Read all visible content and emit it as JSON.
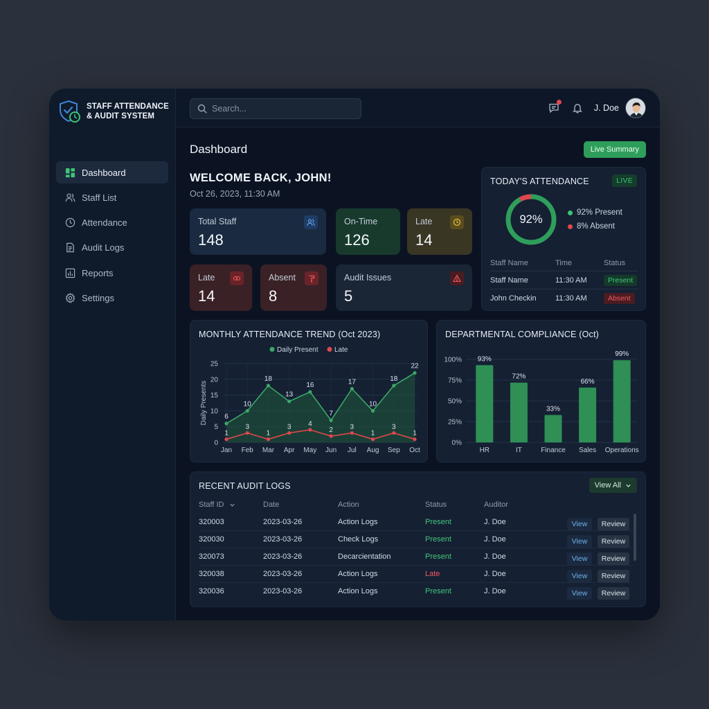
{
  "brand": {
    "title": "STAFF ATTENDANCE & AUDIT SYSTEM"
  },
  "sidebar": {
    "items": [
      {
        "label": "Dashboard",
        "icon": "dashboard-icon",
        "active": true
      },
      {
        "label": "Staff List",
        "icon": "users-icon"
      },
      {
        "label": "Attendance",
        "icon": "clock-icon"
      },
      {
        "label": "Audit Logs",
        "icon": "document-icon"
      },
      {
        "label": "Reports",
        "icon": "bar-chart-icon"
      },
      {
        "label": "Settings",
        "icon": "gear-icon"
      }
    ]
  },
  "topbar": {
    "search_placeholder": "Search...",
    "user_name": "J. Doe"
  },
  "header": {
    "title": "Dashboard",
    "live_summary_label": "Live Summary",
    "welcome": "WELCOME BACK, JOHN!",
    "datetime": "Oct 26, 2023, 11:30 AM"
  },
  "stats": {
    "total_staff": {
      "label": "Total Staff",
      "value": "148"
    },
    "on_time": {
      "label": "On-Time",
      "value": "126"
    },
    "late_top": {
      "label": "Late",
      "value": "14"
    },
    "late": {
      "label": "Late",
      "value": "14"
    },
    "absent": {
      "label": "Absent",
      "value": "8"
    },
    "audit_issues": {
      "label": "Audit Issues",
      "value": "5"
    }
  },
  "today": {
    "title": "TODAY'S ATTENDANCE",
    "live_label": "LIVE",
    "percent_label": "92%",
    "present_fraction": 0.92,
    "legend_present": "92% Present",
    "legend_absent": "8% Absent",
    "columns": [
      "Staff Name",
      "Time",
      "Status"
    ],
    "rows": [
      {
        "name": "Staff Name",
        "time": "11:30 AM",
        "status": "Present"
      },
      {
        "name": "John Checkin",
        "time": "11:30 AM",
        "status": "Absent"
      }
    ]
  },
  "monthly_title": "MONTHLY ATTENDANCE TREND (Oct 2023)",
  "compliance_title": "DEPARTMENTAL COMPLIANCE (Oct)",
  "chart_data": [
    {
      "type": "line",
      "title": "MONTHLY ATTENDANCE TREND (Oct 2023)",
      "ylabel": "Daily Presents",
      "categories": [
        "Jan",
        "Feb",
        "Mar",
        "Apr",
        "May",
        "Jun",
        "Jul",
        "Aug",
        "Sep",
        "Oct"
      ],
      "yticks": [
        "0",
        "5",
        "10",
        "15",
        "20",
        "25"
      ],
      "ylim": [
        0,
        25
      ],
      "series": [
        {
          "name": "Daily Present",
          "color": "#3aa866",
          "values": [
            6,
            10,
            18,
            13,
            16,
            7,
            17,
            10,
            18,
            22
          ]
        },
        {
          "name": "Late",
          "color": "#e0474c",
          "values": [
            1,
            3,
            1,
            3,
            4,
            2,
            3,
            1,
            3,
            1
          ]
        }
      ],
      "grid": true,
      "legend": "top-center"
    },
    {
      "type": "bar",
      "title": "DEPARTMENTAL COMPLIANCE (Oct)",
      "categories": [
        "HR",
        "IT",
        "Finance",
        "Sales",
        "Operations"
      ],
      "values": [
        93,
        72,
        33,
        66,
        99
      ],
      "value_labels": [
        "93%",
        "72%",
        "33%",
        "66%",
        "99%"
      ],
      "yticks": [
        "0%",
        "25%",
        "50%",
        "75%",
        "100%"
      ],
      "ylim": [
        0,
        100
      ],
      "color": "#2f8f55",
      "grid": true
    }
  ],
  "audit": {
    "title": "RECENT AUDIT LOGS",
    "view_all_label": "View All",
    "columns": [
      "Staff ID",
      "Date",
      "Action",
      "Status",
      "Auditor"
    ],
    "view_label": "View",
    "review_label": "Review",
    "rows": [
      {
        "id": "320003",
        "date": "2023-03-26",
        "action": "Action Logs",
        "status": "Present",
        "auditor": "J. Doe"
      },
      {
        "id": "320030",
        "date": "2023-03-26",
        "action": "Check Logs",
        "status": "Present",
        "auditor": "J. Doe"
      },
      {
        "id": "320073",
        "date": "2023-03-26",
        "action": "Decarcientation",
        "status": "Present",
        "auditor": "J. Doe"
      },
      {
        "id": "320038",
        "date": "2023-03-26",
        "action": "Action Logs",
        "status": "Late",
        "auditor": "J. Doe"
      },
      {
        "id": "320036",
        "date": "2023-03-26",
        "action": "Action Logs",
        "status": "Present",
        "auditor": "J. Doe"
      }
    ]
  }
}
